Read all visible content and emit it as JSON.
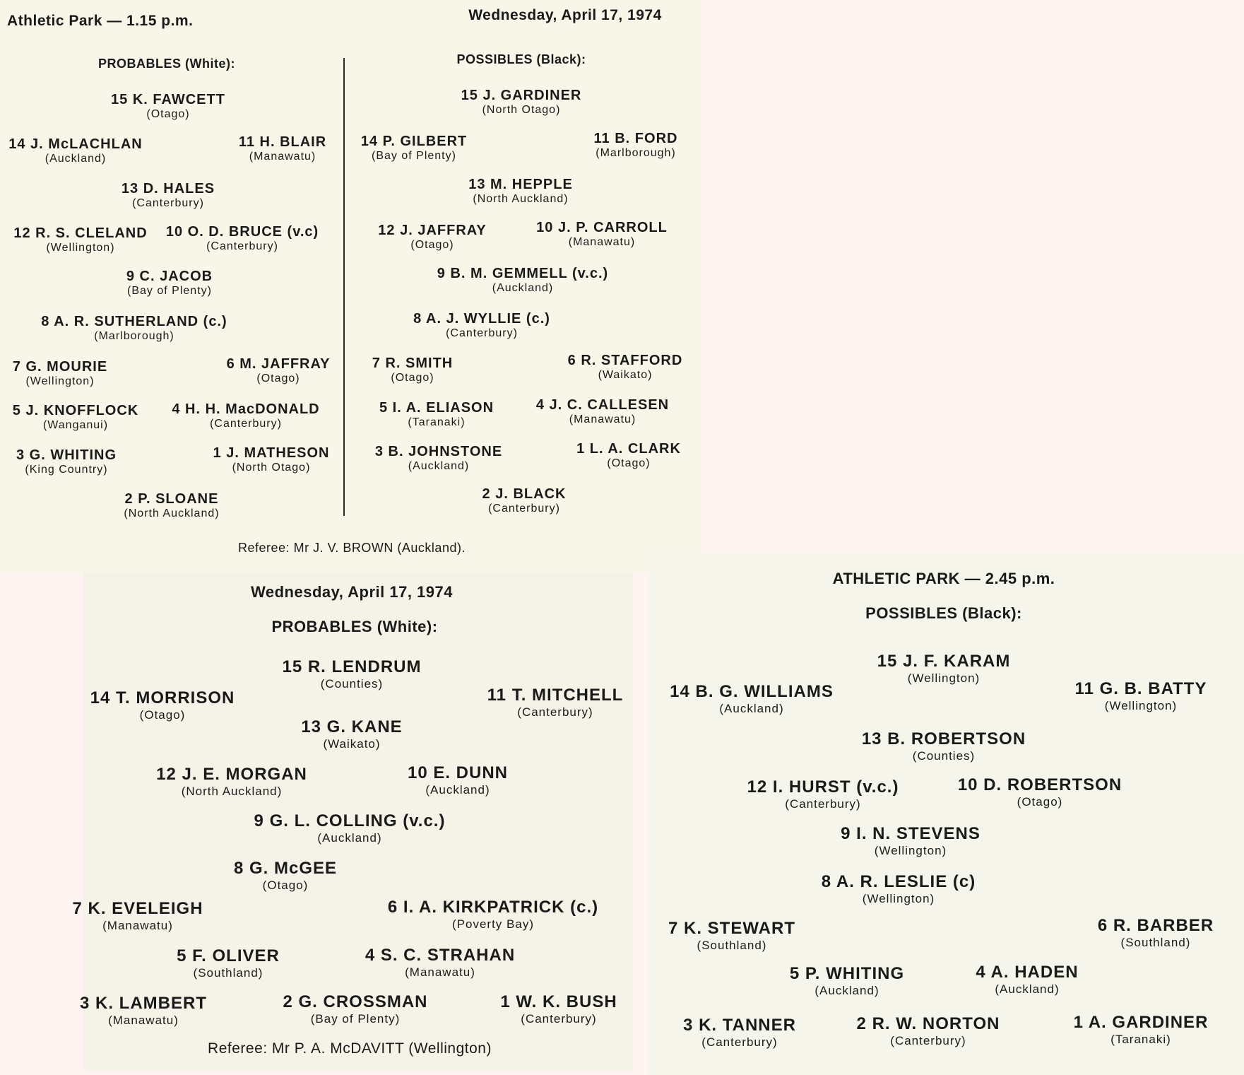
{
  "panel1": {
    "venue_time": "Athletic Park — 1.15 p.m.",
    "date": "Wednesday, April 17, 1974",
    "probables_heading": "PROBABLES (White):",
    "possibles_heading": "POSSIBLES (Black):",
    "probables": [
      {
        "name": "15 K. FAWCETT",
        "region": "(Otago)"
      },
      {
        "name": "14 J. McLACHLAN",
        "region": "(Auckland)"
      },
      {
        "name": "11 H. BLAIR",
        "region": "(Manawatu)"
      },
      {
        "name": "13 D. HALES",
        "region": "(Canterbury)"
      },
      {
        "name": "12 R. S. CLELAND",
        "region": "(Wellington)"
      },
      {
        "name": "10 O. D. BRUCE (v.c)",
        "region": "(Canterbury)"
      },
      {
        "name": "9 C. JACOB",
        "region": "(Bay of Plenty)"
      },
      {
        "name": "8 A. R. SUTHERLAND (c.)",
        "region": "(Marlborough)"
      },
      {
        "name": "7 G. MOURIE",
        "region": "(Wellington)"
      },
      {
        "name": "6 M. JAFFRAY",
        "region": "(Otago)"
      },
      {
        "name": "5 J. KNOFFLOCK",
        "region": "(Wanganui)"
      },
      {
        "name": "4 H. H. MacDONALD",
        "region": "(Canterbury)"
      },
      {
        "name": "3 G. WHITING",
        "region": "(King Country)"
      },
      {
        "name": "1 J. MATHESON",
        "region": "(North Otago)"
      },
      {
        "name": "2 P. SLOANE",
        "region": "(North Auckland)"
      }
    ],
    "possibles": [
      {
        "name": "15 J. GARDINER",
        "region": "(North Otago)"
      },
      {
        "name": "14 P. GILBERT",
        "region": "(Bay of Plenty)"
      },
      {
        "name": "11 B. FORD",
        "region": "(Marlborough)"
      },
      {
        "name": "13 M. HEPPLE",
        "region": "(North Auckland)"
      },
      {
        "name": "12 J. JAFFRAY",
        "region": "(Otago)"
      },
      {
        "name": "10 J. P. CARROLL",
        "region": "(Manawatu)"
      },
      {
        "name": "9 B. M. GEMMELL (v.c.)",
        "region": "(Auckland)"
      },
      {
        "name": "8 A. J. WYLLIE (c.)",
        "region": "(Canterbury)"
      },
      {
        "name": "7 R. SMITH",
        "region": "(Otago)"
      },
      {
        "name": "6 R. STAFFORD",
        "region": "(Waikato)"
      },
      {
        "name": "5 I. A. ELIASON",
        "region": "(Taranaki)"
      },
      {
        "name": "4 J. C. CALLESEN",
        "region": "(Manawatu)"
      },
      {
        "name": "3 B. JOHNSTONE",
        "region": "(Auckland)"
      },
      {
        "name": "1 L. A. CLARK",
        "region": "(Otago)"
      },
      {
        "name": "2 J. BLACK",
        "region": "(Canterbury)"
      }
    ],
    "referee": "Referee: Mr J. V. BROWN (Auckland)."
  },
  "panel2": {
    "date": "Wednesday, April 17, 1974",
    "heading": "PROBABLES (White):",
    "players": [
      {
        "name": "15 R. LENDRUM",
        "region": "(Counties)"
      },
      {
        "name": "14 T. MORRISON",
        "region": "(Otago)"
      },
      {
        "name": "11 T. MITCHELL",
        "region": "(Canterbury)"
      },
      {
        "name": "13 G. KANE",
        "region": "(Waikato)"
      },
      {
        "name": "12 J. E. MORGAN",
        "region": "(North Auckland)"
      },
      {
        "name": "10 E. DUNN",
        "region": "(Auckland)"
      },
      {
        "name": "9 G. L. COLLING (v.c.)",
        "region": "(Auckland)"
      },
      {
        "name": "8 G. McGEE",
        "region": "(Otago)"
      },
      {
        "name": "7 K. EVELEIGH",
        "region": "(Manawatu)"
      },
      {
        "name": "6 I. A. KIRKPATRICK (c.)",
        "region": "(Poverty Bay)"
      },
      {
        "name": "5 F. OLIVER",
        "region": "(Southland)"
      },
      {
        "name": "4 S. C. STRAHAN",
        "region": "(Manawatu)"
      },
      {
        "name": "3 K. LAMBERT",
        "region": "(Manawatu)"
      },
      {
        "name": "2 G. CROSSMAN",
        "region": "(Bay of Plenty)"
      },
      {
        "name": "1 W. K. BUSH",
        "region": "(Canterbury)"
      }
    ],
    "referee": "Referee: Mr P. A. McDAVITT (Wellington)"
  },
  "panel3": {
    "venue_time": "ATHLETIC PARK — 2.45 p.m.",
    "heading": "POSSIBLES (Black):",
    "players": [
      {
        "name": "15 J. F. KARAM",
        "region": "(Wellington)"
      },
      {
        "name": "14 B. G. WILLIAMS",
        "region": "(Auckland)"
      },
      {
        "name": "11 G. B. BATTY",
        "region": "(Wellington)"
      },
      {
        "name": "13 B. ROBERTSON",
        "region": "(Counties)"
      },
      {
        "name": "12 I. HURST (v.c.)",
        "region": "(Canterbury)"
      },
      {
        "name": "10 D. ROBERTSON",
        "region": "(Otago)"
      },
      {
        "name": "9 I. N. STEVENS",
        "region": "(Wellington)"
      },
      {
        "name": "8 A. R. LESLIE (c)",
        "region": "(Wellington)"
      },
      {
        "name": "7 K. STEWART",
        "region": "(Southland)"
      },
      {
        "name": "6 R. BARBER",
        "region": "(Southland)"
      },
      {
        "name": "5 P. WHITING",
        "region": "(Auckland)"
      },
      {
        "name": "4 A. HADEN",
        "region": "(Auckland)"
      },
      {
        "name": "3 K. TANNER",
        "region": "(Canterbury)"
      },
      {
        "name": "2 R. W. NORTON",
        "region": "(Canterbury)"
      },
      {
        "name": "1 A. GARDINER",
        "region": "(Taranaki)"
      }
    ]
  }
}
